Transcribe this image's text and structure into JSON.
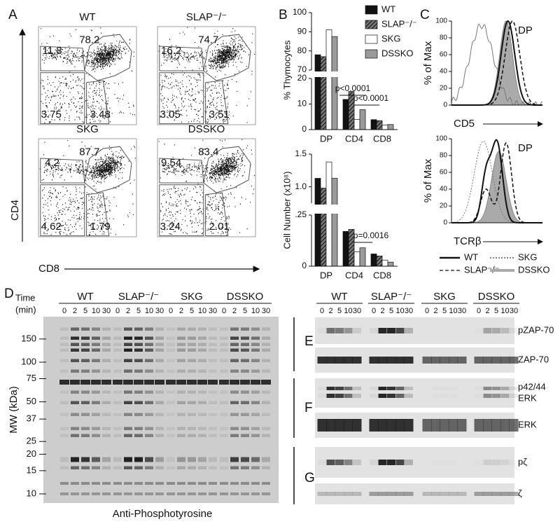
{
  "chart_data": [
    {
      "type": "bar",
      "y_label": "% Thymocytes",
      "categories": [
        "DP",
        "CD4",
        "CD8"
      ],
      "series": [
        {
          "name": "WT",
          "color": "#111111",
          "values": [
            78,
            11.8,
            3.9
          ]
        },
        {
          "name": "SLAP⁻/⁻",
          "color": "#555555",
          "hatch": true,
          "values": [
            77,
            14.9,
            3.5
          ]
        },
        {
          "name": "SKG",
          "color": "#ffffff",
          "values": [
            91,
            4.0,
            1.8
          ]
        },
        {
          "name": "DSSKO",
          "color": "#9a9a9a",
          "values": [
            87.5,
            7.8,
            2.0
          ]
        }
      ],
      "axis_break": true,
      "ylim": [
        0,
        20
      ],
      "yticks": [
        0,
        10,
        20
      ],
      "ylim_upper": [
        70,
        100
      ],
      "yticks_upper": [
        70,
        80,
        90,
        100
      ],
      "annotations": [
        "p<0.0001",
        "p<0.0001"
      ],
      "legend": "upper right"
    },
    {
      "type": "bar",
      "y_label": "Cell Number (x10⁸)",
      "categories": [
        "DP",
        "CD4",
        "CD8"
      ],
      "series": [
        {
          "color": "#111111",
          "values": [
            1.13,
            0.17,
            0.06
          ]
        },
        {
          "color": "#555555",
          "hatch": true,
          "values": [
            0.98,
            0.18,
            0.05
          ]
        },
        {
          "color": "#ffffff",
          "values": [
            1.38,
            0.07,
            0.03
          ]
        },
        {
          "color": "#9a9a9a",
          "values": [
            1.13,
            0.09,
            0.02
          ]
        }
      ],
      "axis_break": true,
      "ylim": [
        0,
        0.25
      ],
      "yticks": [
        0,
        {
          "value": 0.25,
          "label": ".25"
        }
      ],
      "ylim_upper": [
        0.75,
        1.5
      ],
      "yticks_upper": [
        {
          "value": 1,
          "label": "1.0"
        },
        1.5
      ],
      "annotations": [
        "p=0.0016"
      ]
    }
  ],
  "panel_labels": [
    "A",
    "B",
    "C",
    "D",
    "E",
    "F",
    "G"
  ],
  "flow": {
    "x_axis": "CD8",
    "y_axis": "CD4",
    "plots": [
      {
        "title": "WT",
        "gates": [
          11.8,
          78.2,
          3.75,
          3.48
        ]
      },
      {
        "title": "SLAP⁻/⁻",
        "gates": [
          16.2,
          74.7,
          3.05,
          3.51
        ]
      },
      {
        "title": "SKG",
        "gates": [
          4.2,
          87.7,
          4.62,
          1.79
        ]
      },
      {
        "title": "DSSKO",
        "gates": [
          9.54,
          83.4,
          3.24,
          2.01
        ]
      }
    ]
  },
  "histograms": {
    "y_label": "% of Max",
    "ylim": [
      0,
      100
    ],
    "yticks": [
      0,
      20,
      40,
      60,
      80,
      100
    ],
    "population": "DP",
    "markers": [
      "CD5",
      "TCRβ"
    ],
    "legend": [
      "WT",
      "SLAP⁻/⁻",
      "SKG",
      "DSSKO"
    ]
  },
  "blots": {
    "time_label": "Time",
    "time_unit": "(min)",
    "groups": [
      "WT",
      "SLAP⁻/⁻",
      "SKG",
      "DSSKO"
    ],
    "time_points": [
      0,
      2,
      5,
      10,
      30
    ],
    "mw_label": "MW (kDa)",
    "mw_ticks": [
      150,
      100,
      75,
      50,
      37,
      25,
      20,
      15,
      10
    ],
    "antibody": "Anti-Phosphotyrosine",
    "rows": [
      [
        "pZAP-70"
      ],
      [
        "ZAP-70"
      ],
      [
        "p42/44",
        "ERK"
      ],
      [
        "ERK"
      ],
      [
        "pζ"
      ],
      [
        "ζ"
      ]
    ]
  }
}
